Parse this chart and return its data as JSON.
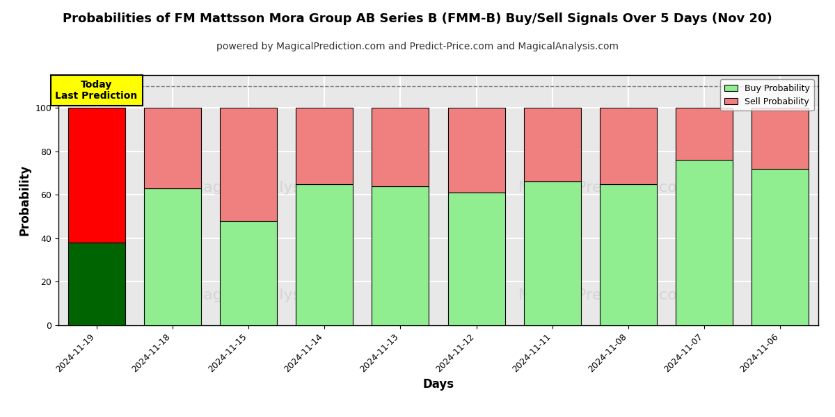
{
  "title": "Probabilities of FM Mattsson Mora Group AB Series B (FMM-B) Buy/Sell Signals Over 5 Days (Nov 20)",
  "subtitle": "powered by MagicalPrediction.com and Predict-Price.com and MagicalAnalysis.com",
  "xlabel": "Days",
  "ylabel": "Probability",
  "dates": [
    "2024-11-19",
    "2024-11-18",
    "2024-11-15",
    "2024-11-14",
    "2024-11-13",
    "2024-11-12",
    "2024-11-11",
    "2024-11-08",
    "2024-11-07",
    "2024-11-06"
  ],
  "buy_values": [
    38,
    63,
    48,
    65,
    64,
    61,
    66,
    65,
    76,
    72
  ],
  "sell_values": [
    62,
    37,
    52,
    35,
    36,
    39,
    34,
    35,
    24,
    28
  ],
  "buy_color_first": "#006400",
  "sell_color_first": "#FF0000",
  "buy_color": "#90EE90",
  "sell_color": "#F08080",
  "bar_edge_color": "black",
  "ylim": [
    0,
    115
  ],
  "dashed_line_y": 110,
  "legend_buy_label": "Buy Probability",
  "legend_sell_label": "Sell Probability",
  "annotation_text": "Today\nLast Prediction",
  "annotation_bg": "#FFFF00",
  "plot_bg_color": "#E8E8E8",
  "title_fontsize": 13,
  "subtitle_fontsize": 10,
  "axis_label_fontsize": 12,
  "tick_fontsize": 9,
  "bar_width": 0.75
}
